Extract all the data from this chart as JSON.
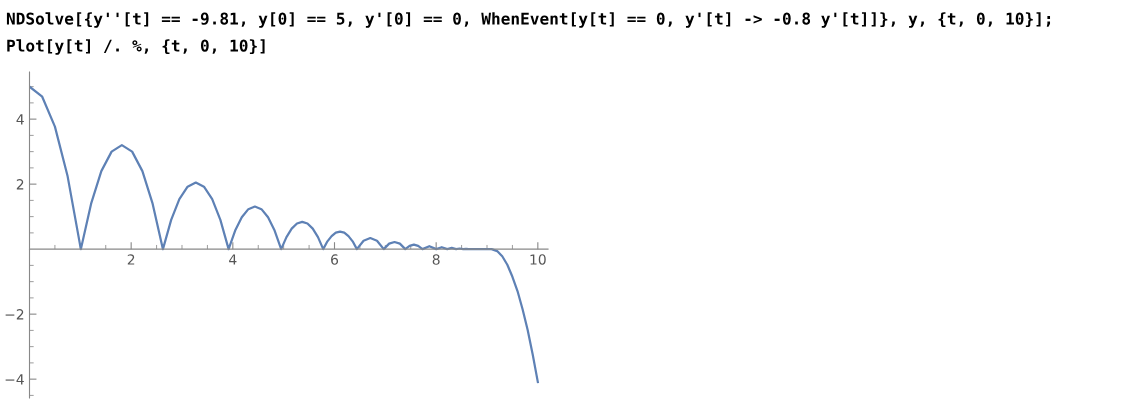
{
  "chart_data": {
    "type": "line",
    "annotations": [
      "NDSolve[{y''[t] == -9.81, y[0] == 5, y'[0] == 0, WhenEvent[y[t] == 0, y'[t] -> -0.8 y'[t]]}, y, {t, 0, 10}];",
      "Plot[y[t] /. %, {t, 0, 10}]"
    ],
    "series": [
      {
        "color": "#5e81b5",
        "x": [
          0,
          0.25,
          0.5,
          0.75,
          1.01,
          1.212,
          1.413,
          1.615,
          1.817,
          2.019,
          2.221,
          2.422,
          2.625,
          2.787,
          2.948,
          3.11,
          3.271,
          3.432,
          3.594,
          3.755,
          3.917,
          4.046,
          4.176,
          4.305,
          4.434,
          4.563,
          4.693,
          4.822,
          4.951,
          5.055,
          5.158,
          5.262,
          5.365,
          5.468,
          5.572,
          5.675,
          5.778,
          5.861,
          5.943,
          6.026,
          6.109,
          6.192,
          6.275,
          6.357,
          6.44,
          6.572,
          6.704,
          6.836,
          6.969,
          7.075,
          7.181,
          7.286,
          7.392,
          7.477,
          7.562,
          7.646,
          7.731,
          7.866,
          8.002,
          8.11,
          8.219,
          8.306,
          8.393,
          8.463,
          8.532,
          8.588,
          8.643,
          9.09,
          9.2,
          9.3,
          9.4,
          9.5,
          9.6,
          9.7,
          9.8,
          9.9,
          10
        ],
        "values": [
          5,
          4.69,
          3.77,
          2.24,
          0,
          1.4,
          2.4,
          3.0,
          3.2,
          3.0,
          2.4,
          1.4,
          0,
          0.9,
          1.54,
          1.92,
          2.05,
          1.92,
          1.54,
          0.9,
          0,
          0.57,
          0.98,
          1.23,
          1.31,
          1.23,
          0.98,
          0.57,
          0,
          0.37,
          0.63,
          0.79,
          0.84,
          0.79,
          0.63,
          0.37,
          0,
          0.24,
          0.4,
          0.51,
          0.54,
          0.51,
          0.4,
          0.24,
          0,
          0.26,
          0.34,
          0.26,
          0,
          0.17,
          0.22,
          0.17,
          0,
          0.1,
          0.14,
          0.1,
          0,
          0.09,
          0,
          0.06,
          0,
          0.04,
          0,
          0.02,
          0,
          0.01,
          0,
          0,
          -0.06,
          -0.22,
          -0.48,
          -0.85,
          -1.29,
          -1.85,
          -2.49,
          -3.25,
          -4.09
        ]
      }
    ],
    "xlim": [
      0,
      10.2
    ],
    "ylim": [
      -4.58,
      5.45
    ],
    "xticks": [
      {
        "value": 0.5,
        "label": null
      },
      {
        "value": 1,
        "label": null
      },
      {
        "value": 1.5,
        "label": null
      },
      2,
      {
        "value": 2.5,
        "label": null
      },
      {
        "value": 3,
        "label": null
      },
      {
        "value": 3.5,
        "label": null
      },
      4,
      {
        "value": 4.5,
        "label": null
      },
      {
        "value": 5,
        "label": null
      },
      {
        "value": 5.5,
        "label": null
      },
      6,
      {
        "value": 6.5,
        "label": null
      },
      {
        "value": 7,
        "label": null
      },
      {
        "value": 7.5,
        "label": null
      },
      8,
      {
        "value": 8.5,
        "label": null
      },
      {
        "value": 9,
        "label": null
      },
      {
        "value": 9.5,
        "label": null
      },
      10
    ],
    "yticks": [
      {
        "value": -4.5,
        "label": null
      },
      -4,
      {
        "value": -3.5,
        "label": null
      },
      {
        "value": -3,
        "label": null
      },
      {
        "value": -2.5,
        "label": null
      },
      -2,
      {
        "value": -1.5,
        "label": null
      },
      {
        "value": -1,
        "label": null
      },
      {
        "value": -0.5,
        "label": null
      },
      {
        "value": 0.5,
        "label": null
      },
      {
        "value": 1,
        "label": null
      },
      {
        "value": 1.5,
        "label": null
      },
      2,
      {
        "value": 2.5,
        "label": null
      },
      {
        "value": 3,
        "label": null
      },
      {
        "value": 3.5,
        "label": null
      },
      4,
      {
        "value": 4.5,
        "label": null
      },
      {
        "value": 5,
        "label": null
      }
    ],
    "grid": false,
    "legend": false
  }
}
